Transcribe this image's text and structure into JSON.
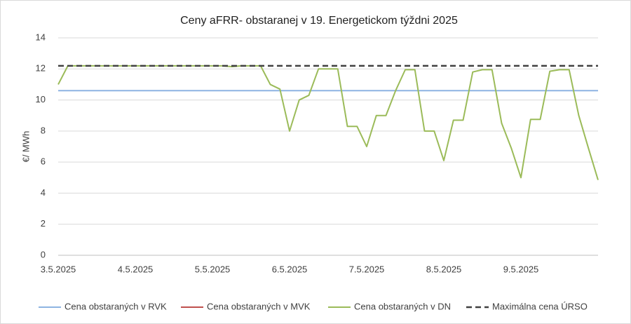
{
  "chart_data": {
    "type": "line",
    "title": "Ceny aFRR- obstaranej v 19. Energetickom týždni 2025",
    "y_label": "€/ MWh",
    "categories": [
      "3.5.2025",
      null,
      null,
      null,
      null,
      null,
      null,
      null,
      "4.5.2025",
      null,
      null,
      null,
      null,
      null,
      null,
      null,
      "5.5.2025",
      null,
      null,
      null,
      null,
      null,
      null,
      null,
      "6.5.2025",
      null,
      null,
      null,
      null,
      null,
      null,
      null,
      "7.5.2025",
      null,
      null,
      null,
      null,
      null,
      null,
      null,
      "8.5.2025",
      null,
      null,
      null,
      null,
      null,
      null,
      null,
      "9.5.2025",
      null,
      null,
      null,
      null,
      null,
      null,
      null,
      null
    ],
    "series": [
      {
        "name": "Cena obstaraných v RVK",
        "color": "#8db4e2",
        "dashed": false,
        "values": [
          10.6,
          10.6,
          10.6,
          10.6,
          10.6,
          10.6,
          10.6,
          10.6,
          10.6,
          10.6,
          10.6,
          10.6,
          10.6,
          10.6,
          10.6,
          10.6,
          10.6,
          10.6,
          10.6,
          10.6,
          10.6,
          10.6,
          10.6,
          10.6,
          10.6,
          10.6,
          10.6,
          10.6,
          10.6,
          10.6,
          10.6,
          10.6,
          10.6,
          10.6,
          10.6,
          10.6,
          10.6,
          10.6,
          10.6,
          10.6,
          10.6,
          10.6,
          10.6,
          10.6,
          10.6,
          10.6,
          10.6,
          10.6,
          10.6,
          10.6,
          10.6,
          10.6,
          10.6,
          10.6,
          10.6,
          10.6,
          10.6
        ]
      },
      {
        "name": "Cena obstaraných v MVK",
        "color": "#c0504d",
        "dashed": false,
        "values": [
          null,
          null,
          null,
          null,
          null,
          null,
          null,
          null,
          null,
          null,
          null,
          null,
          null,
          null,
          null,
          null,
          null,
          null,
          null,
          null,
          null,
          null,
          null,
          null,
          null,
          null,
          null,
          null,
          null,
          null,
          null,
          null,
          null,
          null,
          null,
          null,
          null,
          null,
          null,
          null,
          null,
          null,
          null,
          null,
          null,
          null,
          null,
          null,
          null,
          null,
          null,
          null,
          null,
          null,
          null,
          null,
          null
        ]
      },
      {
        "name": "Cena obstaraných v DN",
        "color": "#9bbb59",
        "dashed": false,
        "values": [
          11.0,
          12.2,
          12.2,
          12.2,
          12.2,
          12.2,
          12.2,
          12.2,
          12.2,
          12.2,
          12.2,
          12.2,
          12.2,
          12.2,
          12.2,
          12.2,
          12.2,
          12.2,
          12.15,
          12.2,
          12.2,
          12.2,
          11.0,
          10.7,
          8.0,
          10.0,
          10.3,
          12.0,
          12.0,
          12.0,
          8.3,
          8.3,
          7.0,
          9.0,
          9.0,
          10.6,
          11.95,
          11.95,
          8.0,
          8.0,
          6.1,
          8.7,
          8.7,
          11.8,
          11.95,
          11.95,
          8.5,
          6.9,
          5.0,
          8.75,
          8.75,
          11.85,
          11.95,
          11.95,
          9.0,
          6.9,
          4.85
        ]
      },
      {
        "name": "Maximálna cena ÚRSO",
        "color": "#404040",
        "dashed": true,
        "values": [
          12.2,
          12.2,
          12.2,
          12.2,
          12.2,
          12.2,
          12.2,
          12.2,
          12.2,
          12.2,
          12.2,
          12.2,
          12.2,
          12.2,
          12.2,
          12.2,
          12.2,
          12.2,
          12.2,
          12.2,
          12.2,
          12.2,
          12.2,
          12.2,
          12.2,
          12.2,
          12.2,
          12.2,
          12.2,
          12.2,
          12.2,
          12.2,
          12.2,
          12.2,
          12.2,
          12.2,
          12.2,
          12.2,
          12.2,
          12.2,
          12.2,
          12.2,
          12.2,
          12.2,
          12.2,
          12.2,
          12.2,
          12.2,
          12.2,
          12.2,
          12.2,
          12.2,
          12.2,
          12.2,
          12.2,
          12.2,
          12.2
        ]
      }
    ],
    "ylim": [
      0,
      14
    ],
    "yticks": [
      0,
      2,
      4,
      6,
      8,
      10,
      12,
      14
    ],
    "grid": true,
    "legend": "bottom"
  }
}
